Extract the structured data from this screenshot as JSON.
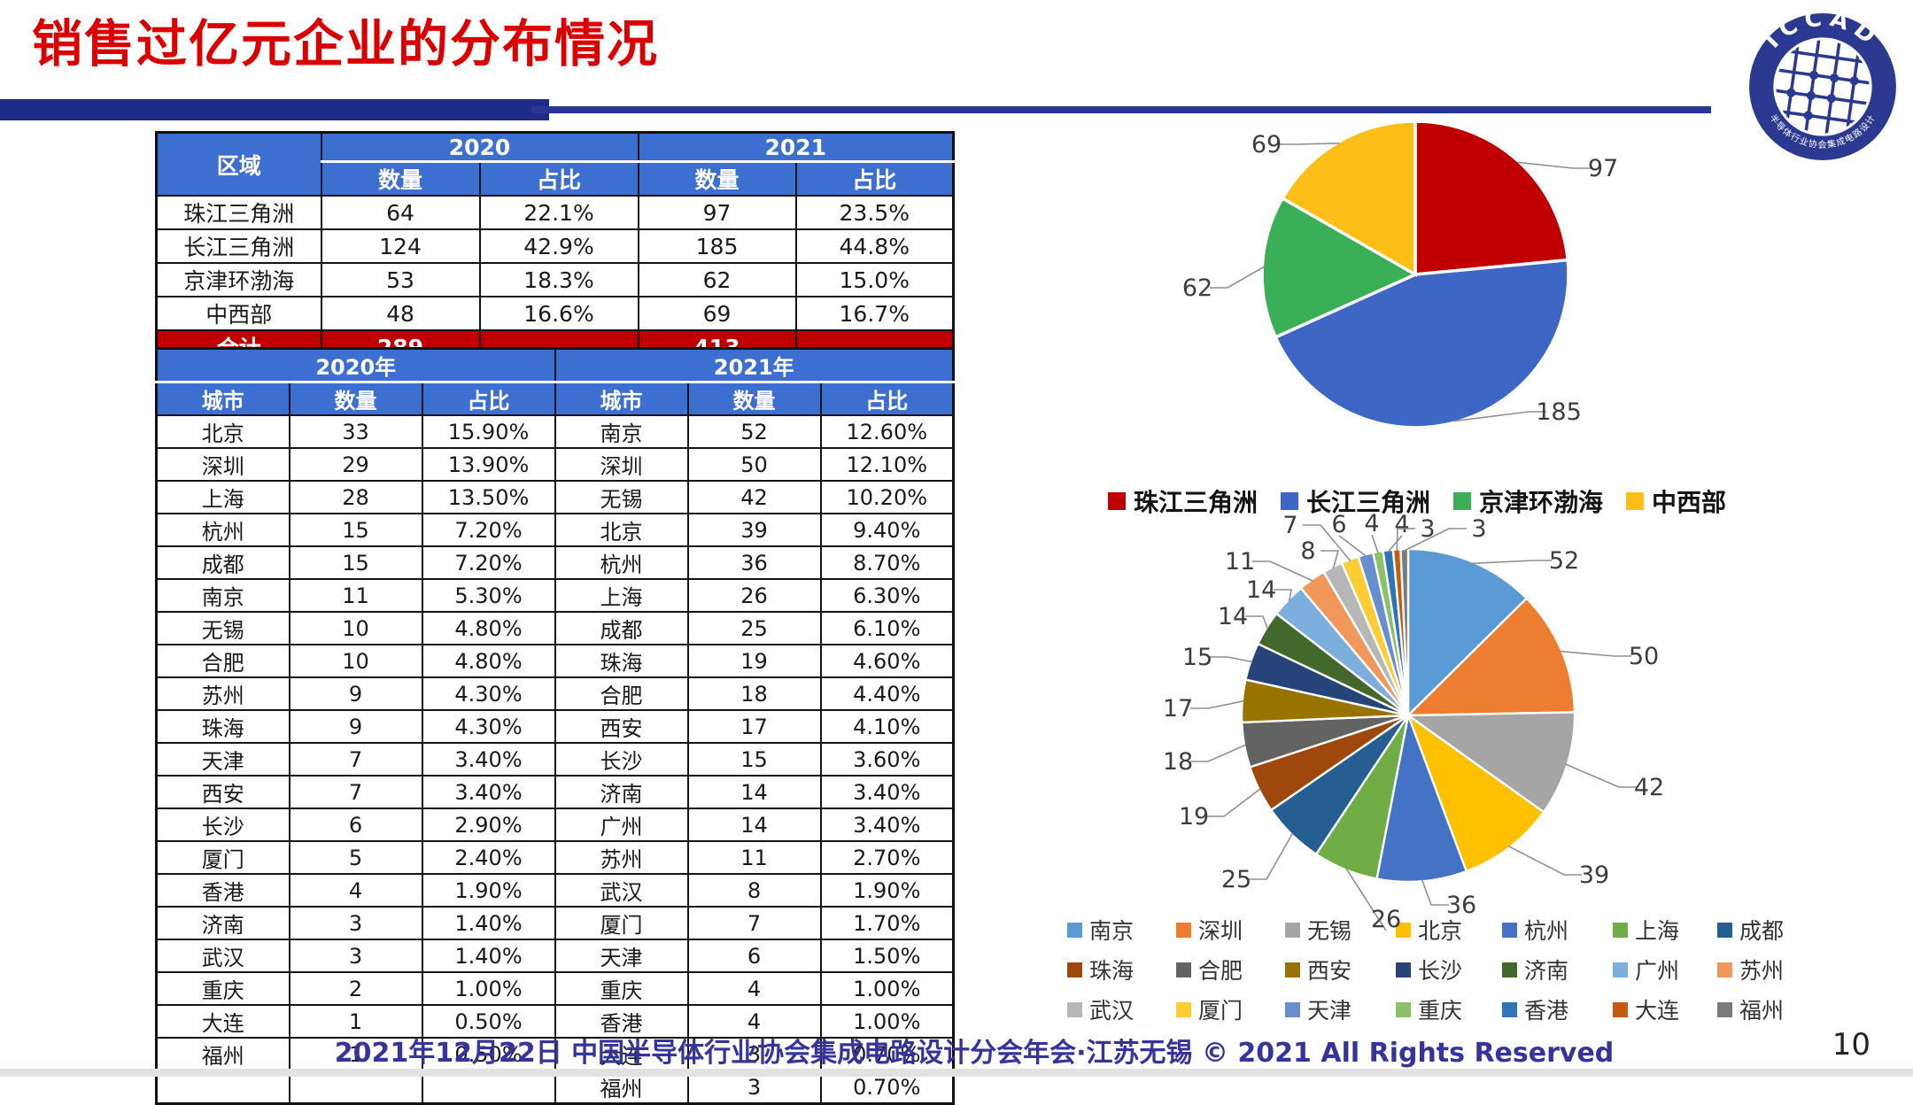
{
  "title": "销售过亿元企业的分布情况",
  "logo": {
    "name": "ICCAD",
    "ring_text": "中国半导体行业协会集成电路设计分会"
  },
  "region_table": {
    "col1_header": "区域",
    "year_headers": [
      "2020",
      "2021"
    ],
    "sub_headers": [
      "数量",
      "占比"
    ],
    "rows": [
      [
        "珠江三角洲",
        "64",
        "22.1%",
        "97",
        "23.5%"
      ],
      [
        "长江三角洲",
        "124",
        "42.9%",
        "185",
        "44.8%"
      ],
      [
        "京津环渤海",
        "53",
        "18.3%",
        "62",
        "15.0%"
      ],
      [
        "中西部",
        "48",
        "16.6%",
        "69",
        "16.7%"
      ]
    ],
    "total_row": [
      "合计",
      "289",
      "",
      "413",
      ""
    ]
  },
  "city_table": {
    "year_headers": [
      "2020年",
      "2021年"
    ],
    "sub_headers": [
      "城市",
      "数量",
      "占比"
    ],
    "rows_2020": [
      [
        "北京",
        "33",
        "15.90%"
      ],
      [
        "深圳",
        "29",
        "13.90%"
      ],
      [
        "上海",
        "28",
        "13.50%"
      ],
      [
        "杭州",
        "15",
        "7.20%"
      ],
      [
        "成都",
        "15",
        "7.20%"
      ],
      [
        "南京",
        "11",
        "5.30%"
      ],
      [
        "无锡",
        "10",
        "4.80%"
      ],
      [
        "合肥",
        "10",
        "4.80%"
      ],
      [
        "苏州",
        "9",
        "4.30%"
      ],
      [
        "珠海",
        "9",
        "4.30%"
      ],
      [
        "天津",
        "7",
        "3.40%"
      ],
      [
        "西安",
        "7",
        "3.40%"
      ],
      [
        "长沙",
        "6",
        "2.90%"
      ],
      [
        "厦门",
        "5",
        "2.40%"
      ],
      [
        "香港",
        "4",
        "1.90%"
      ],
      [
        "济南",
        "3",
        "1.40%"
      ],
      [
        "武汉",
        "3",
        "1.40%"
      ],
      [
        "重庆",
        "2",
        "1.00%"
      ],
      [
        "大连",
        "1",
        "0.50%"
      ],
      [
        "福州",
        "1",
        "0.50%"
      ],
      [
        "",
        "",
        ""
      ]
    ],
    "rows_2021": [
      [
        "南京",
        "52",
        "12.60%"
      ],
      [
        "深圳",
        "50",
        "12.10%"
      ],
      [
        "无锡",
        "42",
        "10.20%"
      ],
      [
        "北京",
        "39",
        "9.40%"
      ],
      [
        "杭州",
        "36",
        "8.70%"
      ],
      [
        "上海",
        "26",
        "6.30%"
      ],
      [
        "成都",
        "25",
        "6.10%"
      ],
      [
        "珠海",
        "19",
        "4.60%"
      ],
      [
        "合肥",
        "18",
        "4.40%"
      ],
      [
        "西安",
        "17",
        "4.10%"
      ],
      [
        "长沙",
        "15",
        "3.60%"
      ],
      [
        "济南",
        "14",
        "3.40%"
      ],
      [
        "广州",
        "14",
        "3.40%"
      ],
      [
        "苏州",
        "11",
        "2.70%"
      ],
      [
        "武汉",
        "8",
        "1.90%"
      ],
      [
        "厦门",
        "7",
        "1.70%"
      ],
      [
        "天津",
        "6",
        "1.50%"
      ],
      [
        "重庆",
        "4",
        "1.00%"
      ],
      [
        "香港",
        "4",
        "1.00%"
      ],
      [
        "大连",
        "3",
        "0.70%"
      ],
      [
        "福州",
        "3",
        "0.70%"
      ]
    ]
  },
  "chart_data": [
    {
      "type": "pie",
      "title": "",
      "labels": [
        "珠江三角洲",
        "长江三角洲",
        "京津环渤海",
        "中西部"
      ],
      "values": [
        97,
        185,
        62,
        69
      ],
      "data_labels": [
        "97",
        "185",
        "62",
        "69"
      ],
      "colors": [
        "#c00000",
        "#3e66c4",
        "#3bae58",
        "#fdbf17"
      ],
      "legend_position": "bottom",
      "start_angle_deg": 0,
      "total": 413
    },
    {
      "type": "pie",
      "title": "",
      "labels": [
        "南京",
        "深圳",
        "无锡",
        "北京",
        "杭州",
        "上海",
        "成都",
        "珠海",
        "合肥",
        "西安",
        "长沙",
        "济南",
        "广州",
        "苏州",
        "武汉",
        "厦门",
        "天津",
        "重庆",
        "香港",
        "大连",
        "福州"
      ],
      "values": [
        52,
        50,
        42,
        39,
        36,
        26,
        25,
        19,
        18,
        17,
        15,
        14,
        14,
        11,
        8,
        7,
        6,
        4,
        4,
        3,
        3
      ],
      "data_labels": [
        "52",
        "50",
        "42",
        "39",
        "36",
        "26",
        "25",
        "19",
        "18",
        "17",
        "15",
        "14",
        "14",
        "11",
        "8",
        "7",
        "6",
        "4",
        "4",
        "3",
        "3"
      ],
      "colors": [
        "#5b9bd5",
        "#ed7d31",
        "#a5a5a5",
        "#ffc000",
        "#4472c4",
        "#70ad47",
        "#255e91",
        "#9e480e",
        "#636363",
        "#997300",
        "#264478",
        "#43682b",
        "#7cafdd",
        "#f1975a",
        "#b7b7b7",
        "#ffcd33",
        "#698ed0",
        "#8cc168",
        "#2e75b6",
        "#c55a11",
        "#7b7b7b"
      ],
      "legend_position": "bottom",
      "start_angle_deg": 0,
      "total": 413
    }
  ],
  "footer": {
    "text": "2021年12月22日 中国半导体行业协会集成电路设计分会年会·江苏无锡 © 2021 All Rights Reserved",
    "page_number": "10"
  }
}
